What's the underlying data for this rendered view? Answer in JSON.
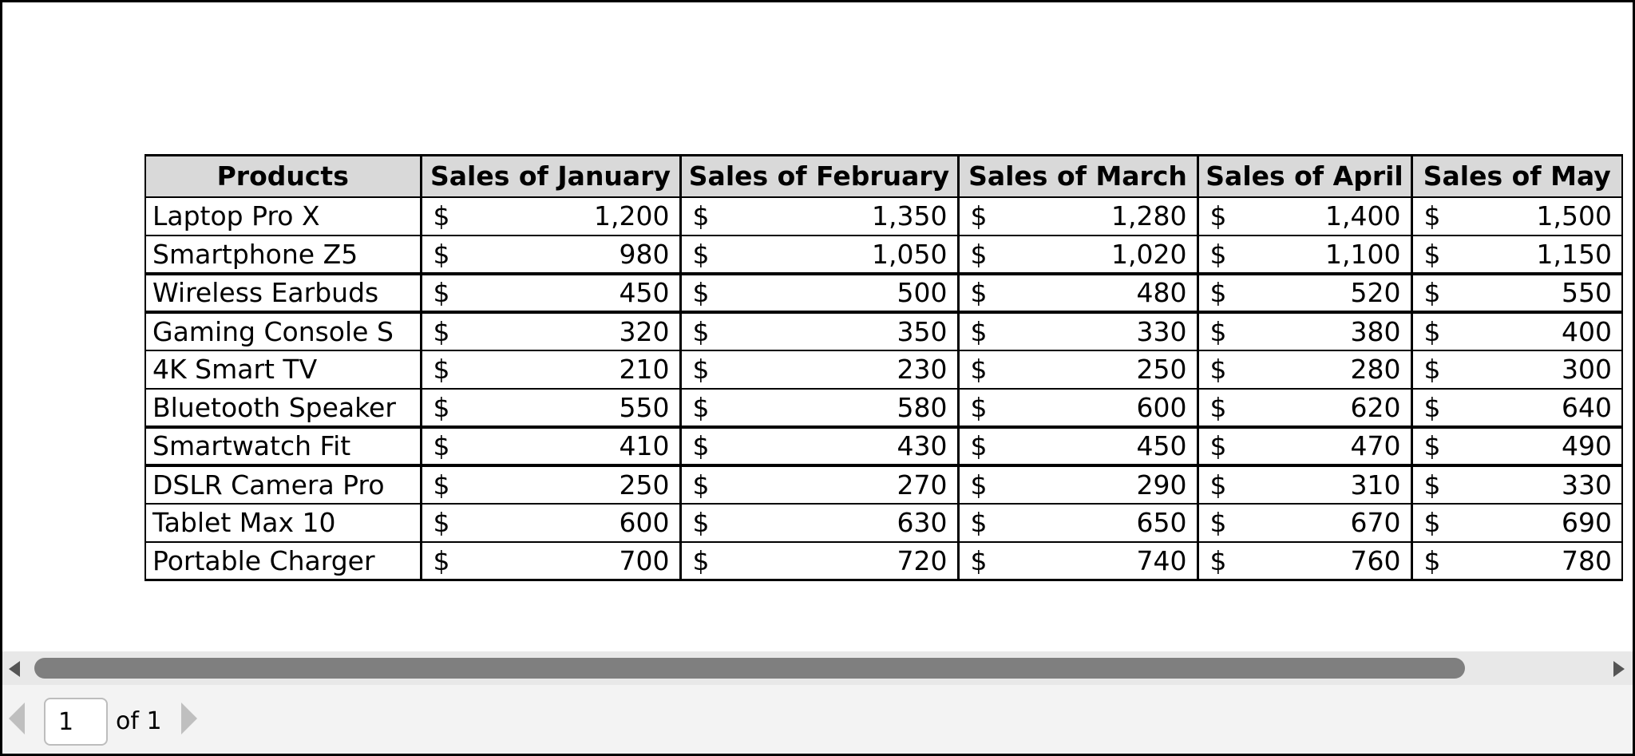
{
  "table": {
    "headers": [
      "Products",
      "Sales of January",
      "Sales of February",
      "Sales of March",
      "Sales of April",
      "Sales of May"
    ],
    "currency_symbol": "$",
    "rows": [
      {
        "product": "Laptop Pro X",
        "values": [
          "1,200",
          "1,350",
          "1,280",
          "1,400",
          "1,500"
        ]
      },
      {
        "product": "Smartphone Z5",
        "values": [
          "980",
          "1,050",
          "1,020",
          "1,100",
          "1,150"
        ]
      },
      {
        "product": "Wireless Earbuds",
        "values": [
          "450",
          "500",
          "480",
          "520",
          "550"
        ]
      },
      {
        "product": "Gaming Console S",
        "values": [
          "320",
          "350",
          "330",
          "380",
          "400"
        ]
      },
      {
        "product": "4K Smart TV",
        "values": [
          "210",
          "230",
          "250",
          "280",
          "300"
        ]
      },
      {
        "product": "Bluetooth Speaker",
        "values": [
          "550",
          "580",
          "600",
          "620",
          "640"
        ]
      },
      {
        "product": "Smartwatch Fit",
        "values": [
          "410",
          "430",
          "450",
          "470",
          "490"
        ]
      },
      {
        "product": "DSLR Camera Pro",
        "values": [
          "250",
          "270",
          "290",
          "310",
          "330"
        ]
      },
      {
        "product": "Tablet Max 10",
        "values": [
          "600",
          "630",
          "650",
          "670",
          "690"
        ]
      },
      {
        "product": "Portable Charger",
        "values": [
          "700",
          "720",
          "740",
          "760",
          "780"
        ]
      }
    ]
  },
  "pager": {
    "current_page": "1",
    "of_label": "of 1"
  },
  "icons": {
    "scroll_left": "triangle-left-icon",
    "scroll_right": "triangle-right-icon",
    "prev_page": "triangle-left-icon",
    "next_page": "triangle-right-icon"
  }
}
